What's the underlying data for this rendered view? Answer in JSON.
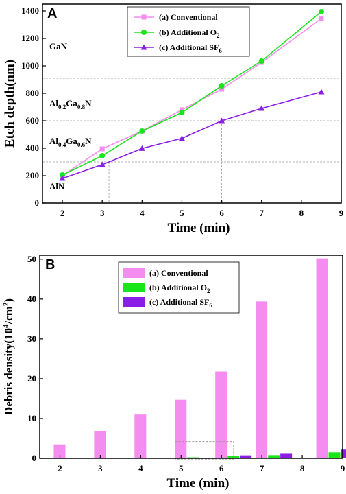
{
  "colors": {
    "conventional": "#f58cf0",
    "oxygen": "#19e619",
    "sf6": "#8b1ee6",
    "guide": "#9a9a9a"
  },
  "chart_data": [
    {
      "type": "line",
      "panel_label": "A",
      "xlabel": "Time (min)",
      "ylabel": "Etch depth(nm)",
      "xlim": [
        1.5,
        9
      ],
      "ylim": [
        0,
        1450
      ],
      "xticks": [
        "2",
        "3",
        "4",
        "5",
        "6",
        "7",
        "8",
        "9"
      ],
      "yticks": [
        "0",
        "200",
        "400",
        "600",
        "800",
        "1000",
        "1200",
        "1400"
      ],
      "legend_position": "top-center",
      "x": [
        2,
        3,
        4,
        5,
        6,
        7,
        8.5
      ],
      "series": [
        {
          "name": "(a) Conventional",
          "name_main": "(a) Conventional",
          "name_sub": "",
          "marker": "square",
          "values": [
            200,
            395,
            525,
            680,
            830,
            1025,
            1345
          ]
        },
        {
          "name": "(b) Additional O2",
          "name_main": "(b) Additional O",
          "name_sub": "2",
          "marker": "circle",
          "values": [
            205,
            345,
            525,
            660,
            855,
            1035,
            1395
          ]
        },
        {
          "name": "(c) Additional SF6",
          "name_main": "(c) Additional SF",
          "name_sub": "6",
          "marker": "triangle",
          "values": [
            180,
            280,
            398,
            472,
            600,
            690,
            810
          ]
        }
      ],
      "layer_labels": [
        {
          "main": "GaN",
          "parts": [
            {
              "t": "GaN",
              "sub": false
            }
          ],
          "y": 1140
        },
        {
          "main": "Al0.2Ga0.8N",
          "parts": [
            {
              "t": "Al",
              "sub": false
            },
            {
              "t": "0.2",
              "sub": true
            },
            {
              "t": "Ga",
              "sub": false
            },
            {
              "t": "0.8",
              "sub": true
            },
            {
              "t": "N",
              "sub": false
            }
          ],
          "y": 725
        },
        {
          "main": "Al0.4Ga0.6N",
          "parts": [
            {
              "t": "Al",
              "sub": false
            },
            {
              "t": "0.4",
              "sub": true
            },
            {
              "t": "Ga",
              "sub": false
            },
            {
              "t": "0.6",
              "sub": true
            },
            {
              "t": "N",
              "sub": false
            }
          ],
          "y": 450
        },
        {
          "main": "AlN",
          "parts": [
            {
              "t": "AlN",
              "sub": false
            }
          ],
          "y": 120
        }
      ],
      "guide_lines": {
        "horizontal": [
          300,
          600,
          910
        ],
        "vertical": [
          {
            "x": 3.17,
            "y": 300
          },
          {
            "x": 6,
            "y": 600
          }
        ]
      }
    },
    {
      "type": "bar",
      "panel_label": "B",
      "xlabel": "Time (min)",
      "ylabel": "Debris density(10",
      "ylabel_sup": "4",
      "ylabel_mid": "/cm",
      "ylabel_sup2": "2",
      "ylabel_end": ")",
      "xlim": [
        1.5,
        9
      ],
      "ylim": [
        0,
        51
      ],
      "xticks": [
        "2",
        "3",
        "4",
        "5",
        "6",
        "7",
        "8",
        "9"
      ],
      "yticks": [
        "0",
        "10",
        "20",
        "30",
        "40",
        "50"
      ],
      "legend_position": "top-left",
      "categories": [
        2,
        3,
        4,
        5,
        6,
        7,
        8.5
      ],
      "series": [
        {
          "name": "(a) Conventional",
          "name_main": "(a) Conventional",
          "name_sub": "",
          "values": [
            3.5,
            6.9,
            11.0,
            14.7,
            21.8,
            39.4,
            50.2
          ]
        },
        {
          "name": "(b) Additional O2",
          "name_main": "(b) Additional O",
          "name_sub": "2",
          "values": [
            0,
            0,
            0,
            0.25,
            0.6,
            0.8,
            1.5
          ]
        },
        {
          "name": "(c) Additional SF6",
          "name_main": "(c) Additional SF",
          "name_sub": "6",
          "values": [
            0,
            0,
            0,
            0,
            0.75,
            1.3,
            2.2
          ]
        }
      ],
      "highlight_box": {
        "x": [
          4.85,
          6.3
        ],
        "y": [
          -0.2,
          4.2
        ]
      }
    }
  ]
}
